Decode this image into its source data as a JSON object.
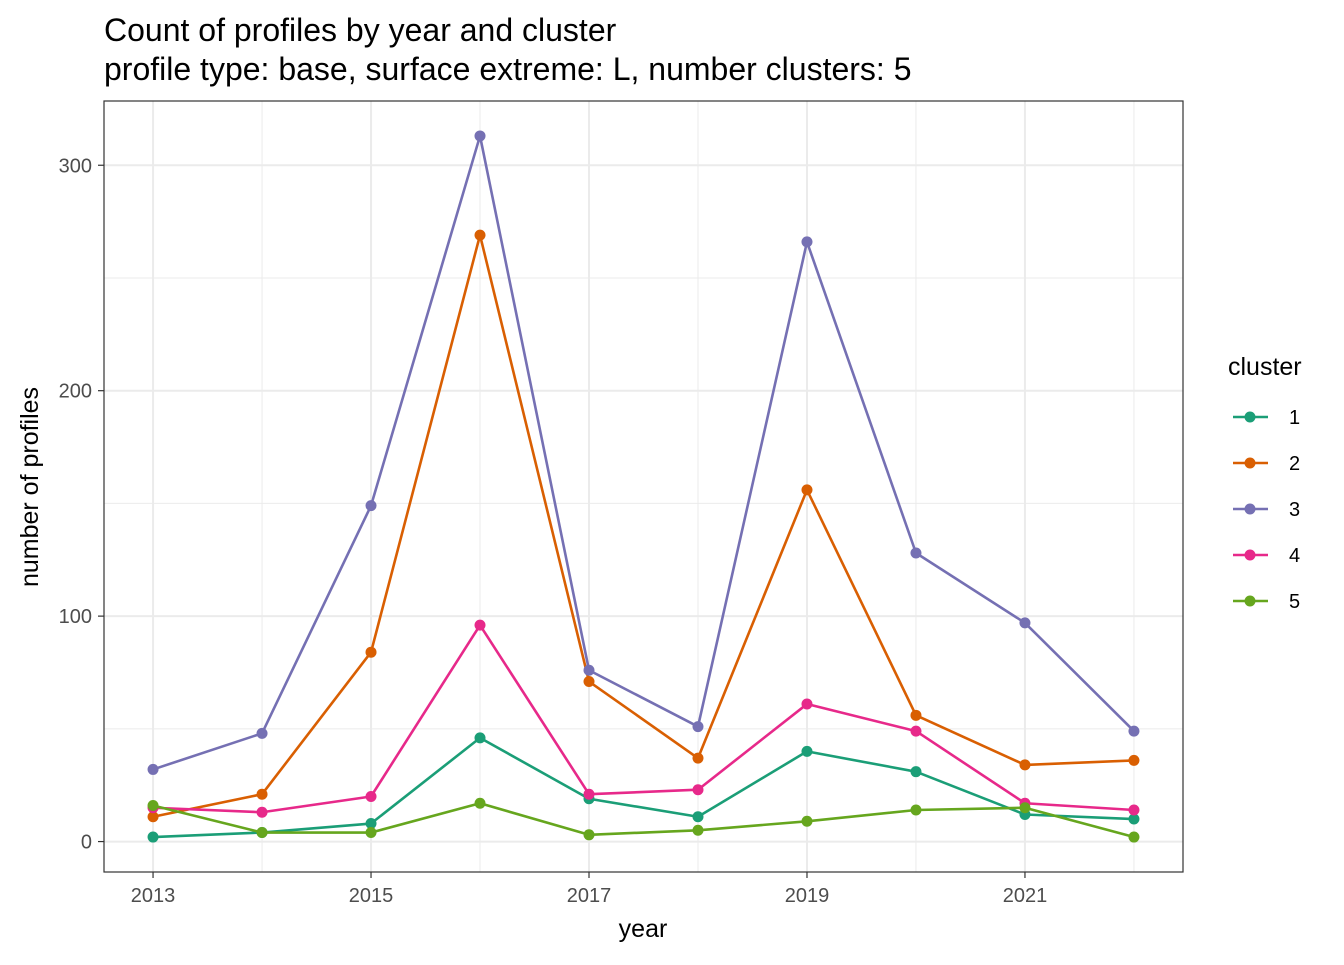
{
  "chart_data": {
    "type": "line",
    "title": "Count of profiles by year and cluster",
    "subtitle": "profile type: base, surface extreme: L, number clusters: 5",
    "xlabel": "year",
    "ylabel": "number of profiles",
    "x": [
      2013,
      2014,
      2015,
      2016,
      2017,
      2018,
      2019,
      2020,
      2021,
      2022
    ],
    "xticks": [
      "2013",
      "2015",
      "2017",
      "2019",
      "2021"
    ],
    "yticks": [
      "0",
      "100",
      "200",
      "300"
    ],
    "xlim": [
      2012.55,
      2022.45
    ],
    "ylim": [
      -13.5,
      328.5
    ],
    "grid": true,
    "legend": {
      "title": "cluster",
      "position": "right"
    },
    "series": [
      {
        "name": "1",
        "color": "#1b9e77",
        "values": [
          2,
          4,
          8,
          46,
          19,
          11,
          40,
          31,
          12,
          10
        ]
      },
      {
        "name": "2",
        "color": "#d95f02",
        "values": [
          11,
          21,
          84,
          269,
          71,
          37,
          156,
          56,
          34,
          36
        ]
      },
      {
        "name": "3",
        "color": "#7570b3",
        "values": [
          32,
          48,
          149,
          313,
          76,
          51,
          266,
          128,
          97,
          49
        ]
      },
      {
        "name": "4",
        "color": "#e7298a",
        "values": [
          15,
          13,
          20,
          96,
          21,
          23,
          61,
          49,
          17,
          14
        ]
      },
      {
        "name": "5",
        "color": "#66a61e",
        "values": [
          16,
          4,
          4,
          17,
          3,
          5,
          9,
          14,
          15,
          2
        ]
      }
    ]
  }
}
